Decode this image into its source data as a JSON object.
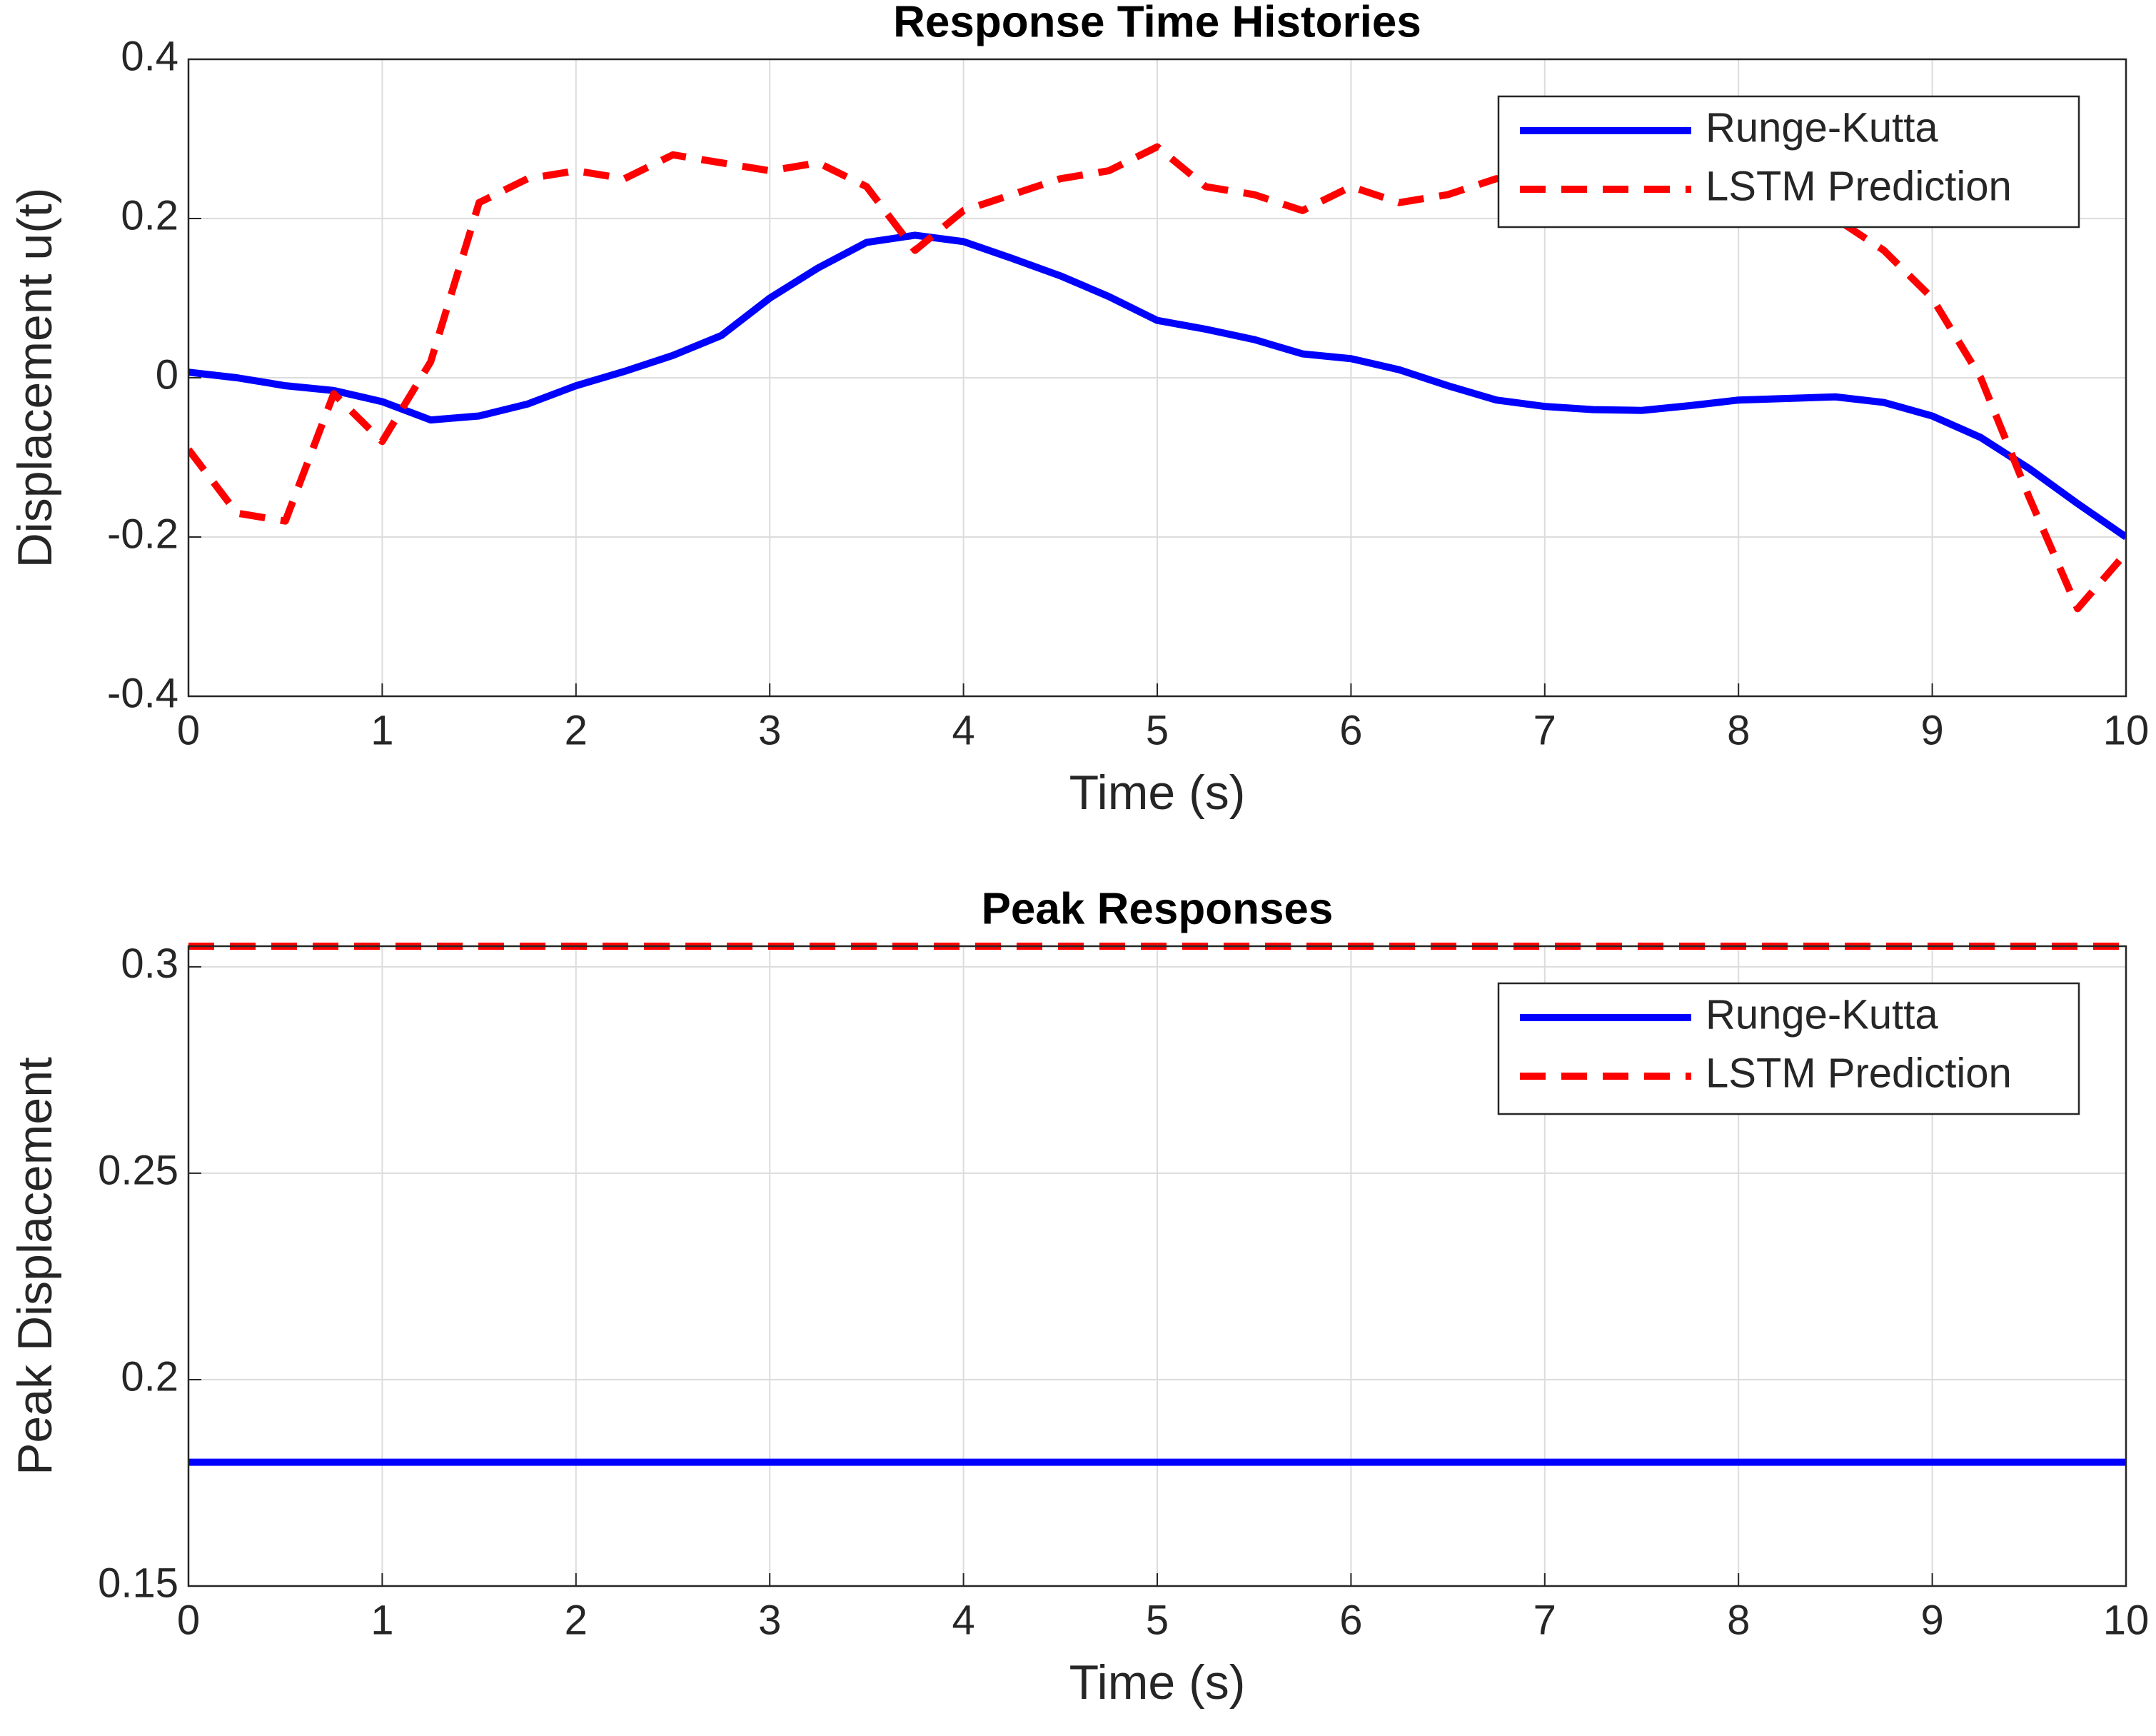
{
  "chart_data": [
    {
      "type": "line",
      "title": "Response Time Histories",
      "xlabel": "Time (s)",
      "ylabel": "Displacement u(t)",
      "x": [
        0,
        0.25,
        0.5,
        0.75,
        1,
        1.25,
        1.5,
        1.75,
        2,
        2.25,
        2.5,
        2.75,
        3,
        3.25,
        3.5,
        3.75,
        4,
        4.25,
        4.5,
        4.75,
        5,
        5.25,
        5.5,
        5.75,
        6,
        6.25,
        6.5,
        6.75,
        7,
        7.25,
        7.5,
        7.75,
        8,
        8.25,
        8.5,
        8.75,
        9,
        9.25,
        9.5,
        9.75,
        10
      ],
      "series": [
        {
          "name": "Runge-Kutta",
          "color": "#0000ff",
          "line_style": "solid",
          "values": [
            0.007,
            0.0,
            -0.01,
            -0.016,
            -0.03,
            -0.053,
            -0.048,
            -0.033,
            -0.01,
            0.008,
            0.028,
            0.053,
            0.1,
            0.138,
            0.17,
            0.179,
            0.171,
            0.15,
            0.128,
            0.102,
            0.072,
            0.061,
            0.048,
            0.03,
            0.024,
            0.01,
            -0.01,
            -0.028,
            -0.036,
            -0.04,
            -0.041,
            -0.035,
            -0.028,
            -0.026,
            -0.024,
            -0.031,
            -0.048,
            -0.075,
            -0.114,
            -0.158,
            -0.2
          ]
        },
        {
          "name": "LSTM Prediction",
          "color": "#ff0000",
          "line_style": "dashed",
          "values": [
            -0.09,
            -0.17,
            -0.18,
            -0.02,
            -0.08,
            0.02,
            0.22,
            0.25,
            0.26,
            0.25,
            0.28,
            0.27,
            0.26,
            0.27,
            0.24,
            0.16,
            0.21,
            0.23,
            0.25,
            0.26,
            0.29,
            0.24,
            0.23,
            0.21,
            0.24,
            0.22,
            0.23,
            0.25,
            0.25,
            0.24,
            0.24,
            0.23,
            0.22,
            0.2,
            0.2,
            0.16,
            0.1,
            0.0,
            -0.15,
            -0.29,
            -0.22
          ]
        }
      ],
      "xlim": [
        0,
        10
      ],
      "xticks": [
        0,
        1,
        2,
        3,
        4,
        5,
        6,
        7,
        8,
        9,
        10
      ],
      "ylim": [
        -0.4,
        0.4
      ],
      "yticks": [
        -0.4,
        -0.2,
        0,
        0.2,
        0.4
      ],
      "grid": true,
      "legend": "northeast"
    },
    {
      "type": "line",
      "title": "Peak Responses",
      "xlabel": "Time (s)",
      "ylabel": "Peak Displacement",
      "x": [
        0,
        10
      ],
      "series": [
        {
          "name": "Runge-Kutta",
          "color": "#0000ff",
          "line_style": "solid",
          "values": [
            0.18,
            0.18
          ]
        },
        {
          "name": "LSTM Prediction",
          "color": "#ff0000",
          "line_style": "dashed",
          "values": [
            0.305,
            0.305
          ]
        }
      ],
      "xlim": [
        0,
        10
      ],
      "xticks": [
        0,
        1,
        2,
        3,
        4,
        5,
        6,
        7,
        8,
        9,
        10
      ],
      "ylim": [
        0.15,
        0.305
      ],
      "yticks": [
        0.15,
        0.2,
        0.25,
        0.3
      ],
      "grid": true,
      "legend": "northeast"
    }
  ]
}
